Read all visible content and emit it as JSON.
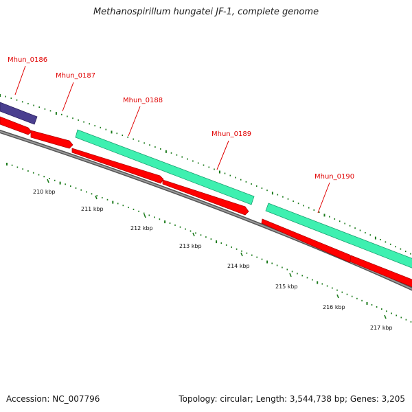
{
  "title": "Methanospirillum hungatei JF-1, complete genome",
  "accession": "Accession: NC_007796",
  "summary": "Topology: circular; Length: 3,544,738 bp; Genes: 3,205",
  "colors": {
    "cds_forward": "#3ef0b0",
    "cds_reverse": "#ff0000",
    "gene_other": "#4a3f8f",
    "backbone": "#777777",
    "ticks": "#1a7a1a",
    "label": "#e00000"
  },
  "genes": [
    {
      "label": "Mhun_0186"
    },
    {
      "label": "Mhun_0187"
    },
    {
      "label": "Mhun_0188"
    },
    {
      "label": "Mhun_0189"
    },
    {
      "label": "Mhun_0190"
    }
  ],
  "scale_labels": [
    "210 kbp",
    "211 kbp",
    "212 kbp",
    "213 kbp",
    "214 kbp",
    "215 kbp",
    "216 kbp",
    "217 kbp"
  ]
}
